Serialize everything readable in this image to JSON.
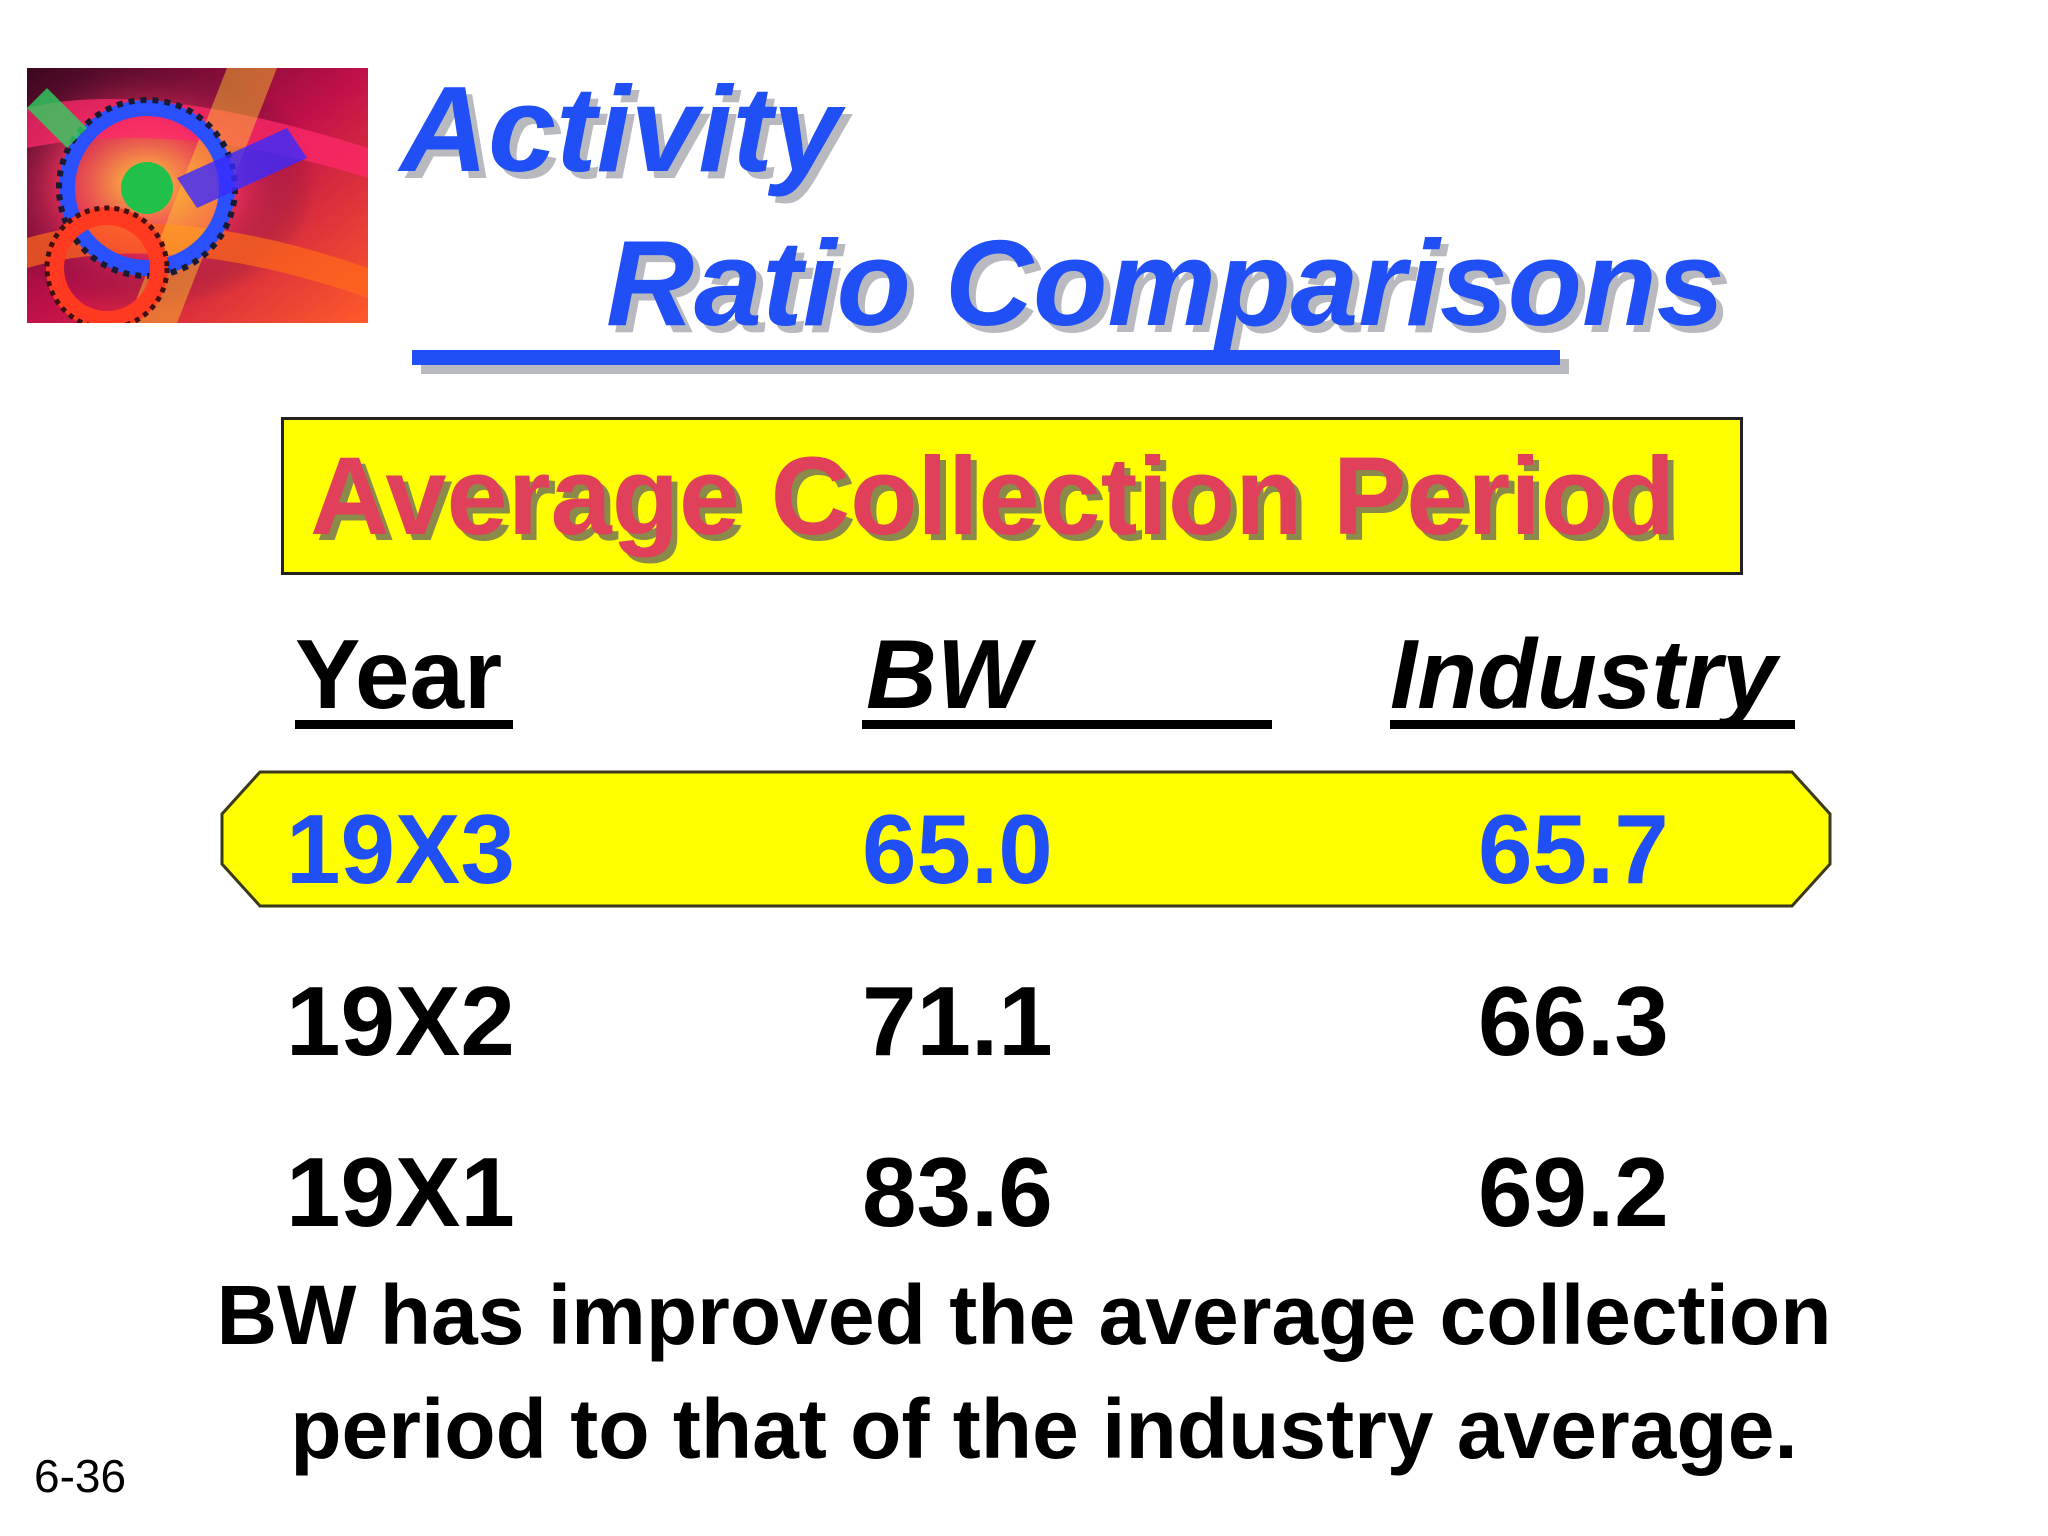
{
  "title": {
    "line1": "Activity",
    "line2": "Ratio Comparisons"
  },
  "subtitle": "Average Collection Period",
  "table": {
    "headers": [
      "Year",
      "BW",
      "Industry"
    ],
    "rows": [
      {
        "year": "19X3",
        "bw": "65.0",
        "industry": "65.7",
        "highlighted": true
      },
      {
        "year": "19X2",
        "bw": "71.1",
        "industry": "66.3",
        "highlighted": false
      },
      {
        "year": "19X1",
        "bw": "83.6",
        "industry": "69.2",
        "highlighted": false
      }
    ]
  },
  "conclusion": {
    "line1": "BW has improved the average collection",
    "line2": "period to that of the industry average."
  },
  "slide_number": "6-36",
  "colors": {
    "title_blue": "#1f4ff5",
    "highlight_yellow": "#ffff00",
    "subtitle_red": "#e0405a"
  }
}
